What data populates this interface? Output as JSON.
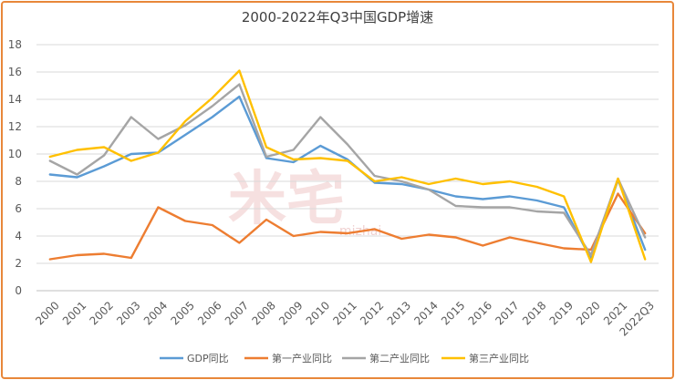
{
  "chart_data": {
    "type": "line",
    "title": "2000-2022年Q3中国GDP增速",
    "categories": [
      "2000",
      "2001",
      "2002",
      "2003",
      "2004",
      "2005",
      "2006",
      "2007",
      "2008",
      "2009",
      "2010",
      "2011",
      "2012",
      "2013",
      "2014",
      "2015",
      "2016",
      "2017",
      "2018",
      "2019",
      "2020",
      "2021",
      "2022Q3"
    ],
    "ylim": [
      0,
      18
    ],
    "yticks": [
      0,
      2,
      4,
      6,
      8,
      10,
      12,
      14,
      16,
      18
    ],
    "grid": true,
    "legend_position": "bottom",
    "watermark": "米宅",
    "watermark_sub": "mizhai",
    "series": [
      {
        "name": "GDP同比",
        "color": "#5b9bd5",
        "values": [
          8.5,
          8.3,
          9.1,
          10.0,
          10.1,
          11.4,
          12.7,
          14.2,
          9.7,
          9.4,
          10.6,
          9.6,
          7.9,
          7.8,
          7.4,
          6.9,
          6.7,
          6.9,
          6.6,
          6.1,
          2.3,
          8.1,
          3.0
        ]
      },
      {
        "name": "第一产业同比",
        "color": "#ed7d31",
        "values": [
          2.3,
          2.6,
          2.7,
          2.4,
          6.1,
          5.1,
          4.8,
          3.5,
          5.2,
          4.0,
          4.3,
          4.2,
          4.5,
          3.8,
          4.1,
          3.9,
          3.3,
          3.9,
          3.5,
          3.1,
          3.0,
          7.1,
          4.2
        ]
      },
      {
        "name": "第二产业同比",
        "color": "#a5a5a5",
        "values": [
          9.5,
          8.5,
          9.9,
          12.7,
          11.1,
          12.1,
          13.5,
          15.1,
          9.8,
          10.3,
          12.7,
          10.7,
          8.4,
          8.0,
          7.4,
          6.2,
          6.1,
          6.1,
          5.8,
          5.7,
          2.6,
          8.2,
          3.9
        ]
      },
      {
        "name": "第三产业同比",
        "color": "#ffc000",
        "values": [
          9.8,
          10.3,
          10.5,
          9.5,
          10.1,
          12.4,
          14.1,
          16.1,
          10.5,
          9.6,
          9.7,
          9.5,
          8.0,
          8.3,
          7.8,
          8.2,
          7.8,
          8.0,
          7.6,
          6.9,
          2.1,
          8.2,
          2.3
        ]
      }
    ]
  }
}
